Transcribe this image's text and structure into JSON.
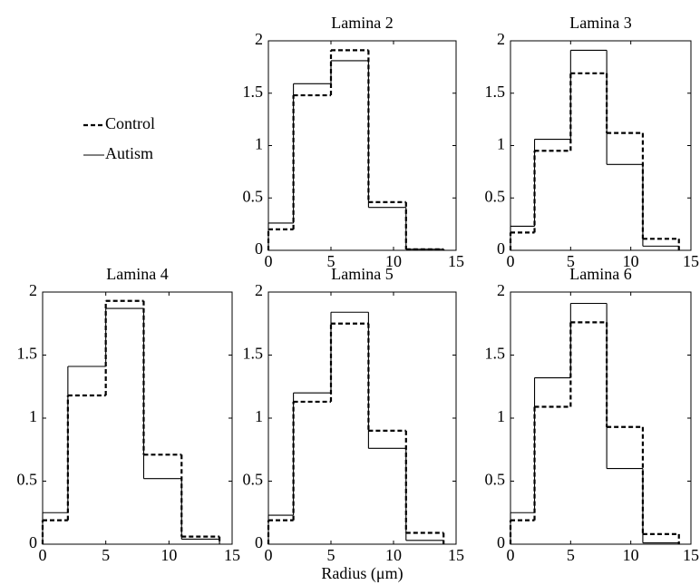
{
  "chart_data": [
    {
      "type": "histogram",
      "title": "Lamina 2",
      "bins": [
        0,
        2,
        5,
        8,
        11,
        14
      ],
      "series": [
        {
          "name": "Control",
          "color": "#000000",
          "dashed": true,
          "values": [
            0.2,
            1.48,
            1.91,
            0.46,
            0.01
          ]
        },
        {
          "name": "Autism",
          "color": "#000000",
          "dashed": false,
          "values": [
            0.26,
            1.59,
            1.81,
            0.41,
            0.01
          ]
        }
      ],
      "xlim": [
        0,
        15
      ],
      "ylim": [
        0,
        2
      ],
      "xticks": [
        0,
        5,
        10,
        15
      ],
      "yticks": [
        0,
        0.5,
        1,
        1.5,
        2
      ]
    },
    {
      "type": "histogram",
      "title": "Lamina 3",
      "bins": [
        0,
        2,
        5,
        8,
        11,
        14
      ],
      "series": [
        {
          "name": "Control",
          "color": "#000000",
          "dashed": true,
          "values": [
            0.17,
            0.95,
            1.69,
            1.12,
            0.11
          ]
        },
        {
          "name": "Autism",
          "color": "#000000",
          "dashed": false,
          "values": [
            0.23,
            1.06,
            1.91,
            0.82,
            0.04
          ]
        }
      ],
      "xlim": [
        0,
        15
      ],
      "ylim": [
        0,
        2
      ],
      "xticks": [
        0,
        5,
        10,
        15
      ],
      "yticks": [
        0,
        0.5,
        1,
        1.5,
        2
      ]
    },
    {
      "type": "histogram",
      "title": "Lamina 4",
      "bins": [
        0,
        2,
        5,
        8,
        11,
        14
      ],
      "series": [
        {
          "name": "Control",
          "color": "#000000",
          "dashed": true,
          "values": [
            0.19,
            1.18,
            1.93,
            0.71,
            0.06
          ]
        },
        {
          "name": "Autism",
          "color": "#000000",
          "dashed": false,
          "values": [
            0.25,
            1.41,
            1.87,
            0.52,
            0.04
          ]
        }
      ],
      "xlim": [
        0,
        15
      ],
      "ylim": [
        0,
        2
      ],
      "xticks": [
        0,
        5,
        10,
        15
      ],
      "yticks": [
        0,
        0.5,
        1,
        1.5,
        2
      ]
    },
    {
      "type": "histogram",
      "title": "Lamina 5",
      "xlabel": "Radius (μm)",
      "bins": [
        0,
        2,
        5,
        8,
        11,
        14
      ],
      "series": [
        {
          "name": "Control",
          "color": "#000000",
          "dashed": true,
          "values": [
            0.19,
            1.13,
            1.75,
            0.9,
            0.09
          ]
        },
        {
          "name": "Autism",
          "color": "#000000",
          "dashed": false,
          "values": [
            0.23,
            1.2,
            1.84,
            0.76,
            0.03
          ]
        }
      ],
      "xlim": [
        0,
        15
      ],
      "ylim": [
        0,
        2
      ],
      "xticks": [
        0,
        5,
        10,
        15
      ],
      "yticks": [
        0,
        0.5,
        1,
        1.5,
        2
      ]
    },
    {
      "type": "histogram",
      "title": "Lamina 6",
      "bins": [
        0,
        2,
        5,
        8,
        11,
        14
      ],
      "series": [
        {
          "name": "Control",
          "color": "#000000",
          "dashed": true,
          "values": [
            0.19,
            1.09,
            1.76,
            0.93,
            0.08
          ]
        },
        {
          "name": "Autism",
          "color": "#000000",
          "dashed": false,
          "values": [
            0.25,
            1.32,
            1.91,
            0.6,
            0.01
          ]
        }
      ],
      "xlim": [
        0,
        15
      ],
      "ylim": [
        0,
        2
      ],
      "xticks": [
        0,
        5,
        10,
        15
      ],
      "yticks": [
        0,
        0.5,
        1,
        1.5,
        2
      ]
    }
  ]
}
